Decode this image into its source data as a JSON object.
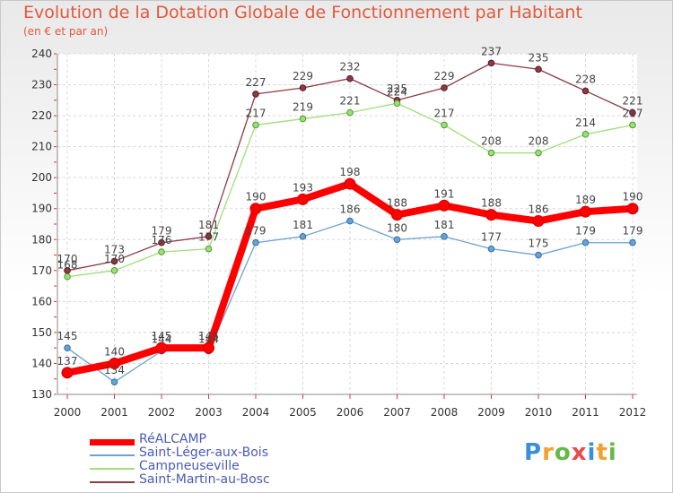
{
  "chart_data": {
    "type": "line",
    "title": "Evolution de la Dotation Globale de Fonctionnement par Habitant",
    "subtitle": "(en € et par an)",
    "x": [
      "2000",
      "2001",
      "2002",
      "2003",
      "2004",
      "2005",
      "2006",
      "2007",
      "2008",
      "2009",
      "2010",
      "2011",
      "2012"
    ],
    "ylim": [
      130,
      240
    ],
    "yticks": [
      130,
      140,
      150,
      160,
      170,
      180,
      190,
      200,
      210,
      220,
      230,
      240
    ],
    "grid": true,
    "legend_position": "bottom-left",
    "series": [
      {
        "name": "RéALCAMP",
        "color": "#ff0000",
        "values": [
          137,
          140,
          145,
          145,
          190,
          193,
          198,
          188,
          191,
          188,
          186,
          189,
          190
        ],
        "labels": [
          "137",
          "140",
          "145",
          "145",
          "190",
          "193",
          "198",
          "188",
          "191",
          "188",
          "186",
          "189",
          "190"
        ]
      },
      {
        "name": "Saint-Léger-aux-Bois",
        "color": "#6aa2d2",
        "values": [
          145,
          134,
          144,
          144,
          179,
          181,
          186,
          180,
          181,
          177,
          175,
          179,
          179
        ],
        "labels": [
          "145",
          "134",
          "144",
          "144",
          "179",
          "181",
          "186",
          "180",
          "181",
          "177",
          "175",
          "179",
          "179"
        ]
      },
      {
        "name": "Campneuseville",
        "color": "#9ede78",
        "values": [
          168,
          170,
          176,
          177,
          217,
          219,
          221,
          224,
          217,
          208,
          208,
          214,
          217
        ],
        "labels": [
          "168",
          "170",
          "176",
          "177",
          "217",
          "219",
          "221",
          "224",
          "217",
          "208",
          "208",
          "214",
          "217"
        ]
      },
      {
        "name": "Saint-Martin-au-Bosc",
        "color": "#8c3a46",
        "values": [
          170,
          173,
          179,
          181,
          227,
          229,
          232,
          225,
          229,
          237,
          235,
          228,
          221
        ],
        "labels": [
          "170",
          "173",
          "179",
          "181",
          "227",
          "229",
          "232",
          "225",
          "229",
          "237",
          "235",
          "228",
          "221"
        ]
      }
    ]
  },
  "logo": {
    "letters": [
      "P",
      "r",
      "o",
      "x",
      "i",
      "t",
      "i"
    ],
    "colors": [
      "#3a8fd8",
      "#f2a22b",
      "#66b84a",
      "#e94a4a",
      "#3a8fd8",
      "#f2a22b",
      "#66b84a"
    ]
  }
}
